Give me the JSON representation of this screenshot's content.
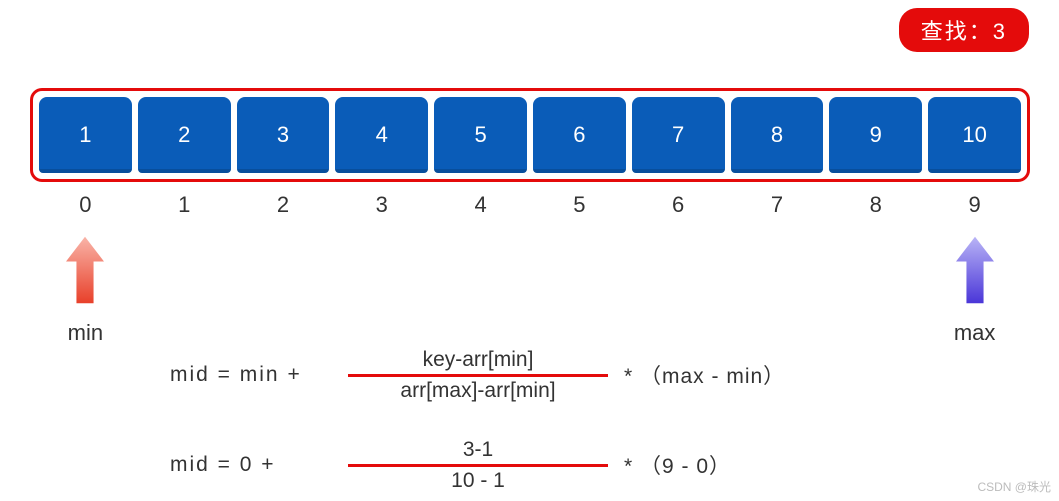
{
  "colors": {
    "badge_bg": "#e40b0b",
    "badge_fg": "#ffffff",
    "array_border": "#e40b0b",
    "cell_bg": "#0a5cb8",
    "cell_fg": "#ffffff",
    "index_fg": "#333333",
    "min_arrow_top": "#f9b4a8",
    "min_arrow_bot": "#e8402a",
    "max_arrow_top": "#b9b4f6",
    "max_arrow_bot": "#4a36d8",
    "frac_bar": "#e40b0b",
    "text": "#333333"
  },
  "badge": {
    "label": "查找：3"
  },
  "array": {
    "values": [
      "1",
      "2",
      "3",
      "4",
      "5",
      "6",
      "7",
      "8",
      "9",
      "10"
    ],
    "indices": [
      "0",
      "1",
      "2",
      "3",
      "4",
      "5",
      "6",
      "7",
      "8",
      "9"
    ]
  },
  "pointers": {
    "min": {
      "label": "min",
      "index": 0
    },
    "max": {
      "label": "max",
      "index": 9
    }
  },
  "formulas": [
    {
      "lhs": "mid  =  min   +",
      "numerator": "key-arr[min]",
      "denominator": "arr[max]-arr[min]",
      "tail": "*   （max - min）"
    },
    {
      "lhs": "mid  =    0    +",
      "numerator": "3-1",
      "denominator": "10 - 1",
      "tail": "*   （9 - 0）"
    }
  ],
  "watermark": "CSDN @珠光"
}
